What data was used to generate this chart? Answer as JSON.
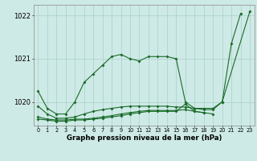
{
  "title": "Graphe pression niveau de la mer (hPa)",
  "background_color": "#ceeae6",
  "grid_color": "#aed4cf",
  "line_color": "#1a6b2a",
  "ylim": [
    1019.45,
    1022.25
  ],
  "yticks": [
    1020,
    1021,
    1022
  ],
  "x_labels": [
    "0",
    "1",
    "2",
    "3",
    "4",
    "5",
    "6",
    "7",
    "8",
    "9",
    "10",
    "11",
    "12",
    "13",
    "14",
    "15",
    "16",
    "17",
    "18",
    "19",
    "20",
    "21",
    "22",
    "23"
  ],
  "series": [
    {
      "x": [
        0,
        1,
        2,
        3,
        4,
        5,
        6,
        7,
        8,
        9,
        10,
        11,
        12,
        13,
        14,
        15,
        16,
        17,
        18,
        19,
        20,
        21,
        22
      ],
      "y": [
        1020.25,
        1019.85,
        1019.72,
        1019.72,
        1020.0,
        1020.45,
        1020.65,
        1020.85,
        1021.05,
        1021.1,
        1021.0,
        1020.95,
        1021.05,
        1021.05,
        1021.05,
        1021.0,
        1020.0,
        1019.85,
        1019.85,
        1019.85,
        1020.0,
        1021.35,
        1022.05
      ]
    },
    {
      "x": [
        0,
        1,
        2,
        3,
        4,
        5,
        6,
        7,
        8,
        9,
        10,
        11,
        12,
        13,
        14,
        15,
        16,
        17,
        18,
        19,
        20,
        23
      ],
      "y": [
        1019.9,
        1019.72,
        1019.62,
        1019.62,
        1019.65,
        1019.72,
        1019.78,
        1019.82,
        1019.85,
        1019.88,
        1019.9,
        1019.9,
        1019.9,
        1019.9,
        1019.9,
        1019.88,
        1019.88,
        1019.85,
        1019.82,
        1019.82,
        1020.0,
        1022.1
      ]
    },
    {
      "x": [
        0,
        1,
        2,
        3,
        4,
        5,
        6,
        7,
        8,
        9,
        10,
        11,
        12,
        13,
        14,
        15,
        16,
        17,
        18,
        19
      ],
      "y": [
        1019.65,
        1019.6,
        1019.58,
        1019.58,
        1019.6,
        1019.6,
        1019.62,
        1019.65,
        1019.68,
        1019.72,
        1019.75,
        1019.78,
        1019.8,
        1019.8,
        1019.8,
        1019.8,
        1019.82,
        1019.78,
        1019.75,
        1019.72
      ]
    },
    {
      "x": [
        0,
        1,
        2,
        3,
        4,
        5,
        6,
        7,
        8,
        9,
        10,
        11,
        12,
        13,
        14,
        15,
        16,
        17,
        18
      ],
      "y": [
        1019.6,
        1019.58,
        1019.55,
        1019.55,
        1019.58,
        1019.58,
        1019.6,
        1019.62,
        1019.65,
        1019.68,
        1019.72,
        1019.75,
        1019.78,
        1019.78,
        1019.78,
        1019.78,
        1019.95,
        1019.78,
        1019.75
      ]
    }
  ]
}
